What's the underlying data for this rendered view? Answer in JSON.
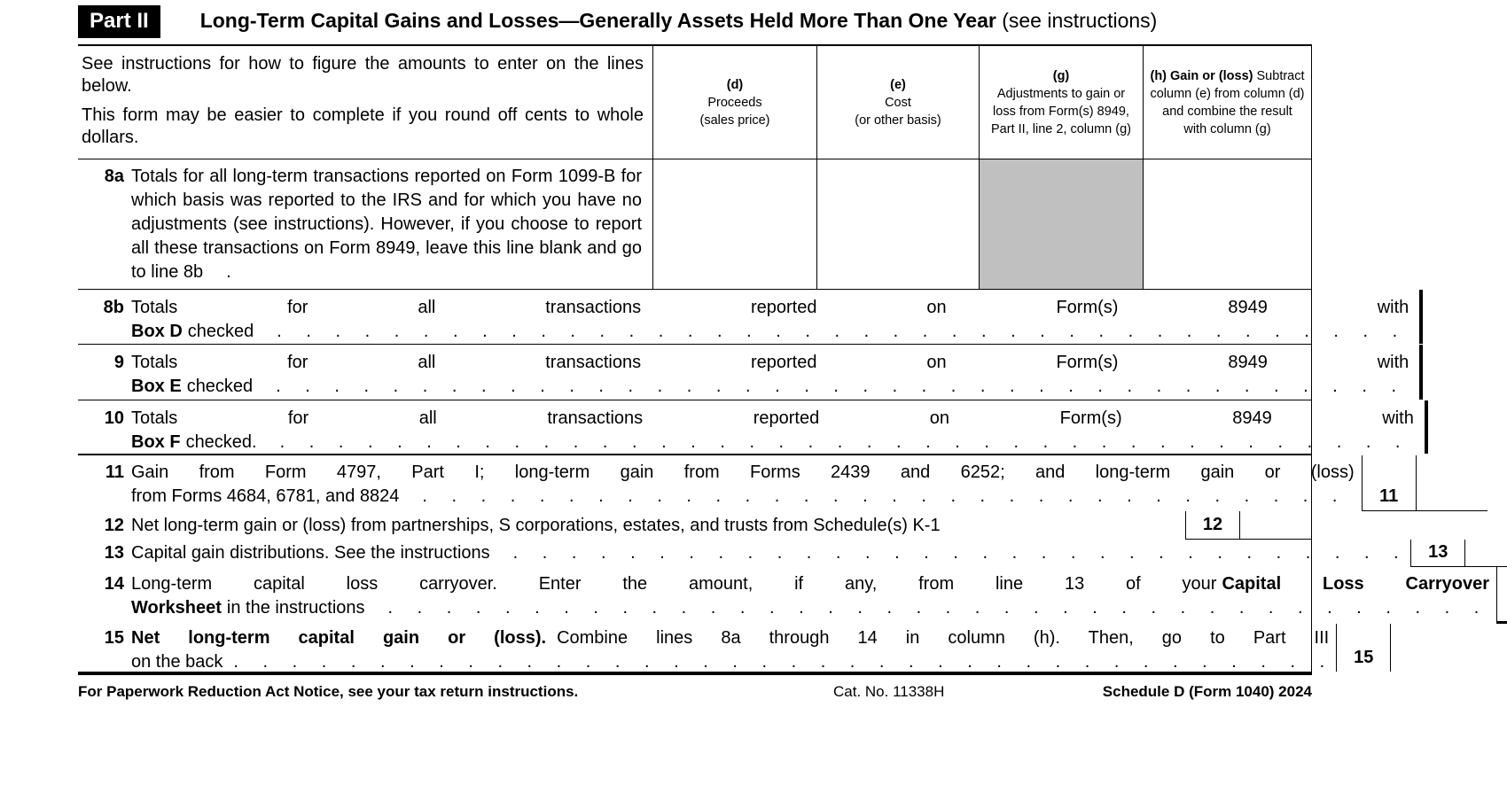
{
  "header": {
    "part_label": "Part II",
    "title": "Long-Term Capital Gains and Losses—Generally Assets Held More Than One Year",
    "subtitle": " (see instructions)"
  },
  "leader_dots": ". . . . . . . . . . . . . . . . . . . . . . . . . . . . . . . . . . . . . . . .",
  "intro": {
    "p1": "See instructions for how to figure the amounts to enter on the lines below.",
    "p2": "This form may be easier to complete if you round off cents to whole dollars."
  },
  "columns": {
    "d_label": "(d)",
    "d_line1": "Proceeds",
    "d_line2": "(sales price)",
    "e_label": "(e)",
    "e_line1": "Cost",
    "e_line2": "(or other basis)",
    "g_label": "(g)",
    "g_text": "Adjustments to gain or loss from Form(s) 8949, Part II, line 2, column (g)",
    "h_label": "(h) Gain or (loss)",
    "h_text": " Subtract column (e) from column (d) and combine the result with column (g)"
  },
  "rows": {
    "r8a": {
      "num": "8a",
      "text": "Totals for all long-term transactions reported on Form 1099-B for which basis was reported to the IRS and for which you have no adjustments (see instructions). However, if you choose to report all these transactions on Form 8949, leave this line blank and go to line 8b",
      "trail": "."
    },
    "r8b": {
      "num": "8b",
      "text": "Totals for all transactions reported on Form(s) 8949 with",
      "bold": "Box D",
      "after": "checked"
    },
    "r9": {
      "num": "9",
      "text": "Totals for all transactions reported on Form(s) 8949 with",
      "bold": "Box E",
      "after": "checked"
    },
    "r10": {
      "num": "10",
      "text": "Totals for all transactions reported on Form(s) 8949 with",
      "bold": "Box F",
      "after": "checked."
    }
  },
  "lines": {
    "l11": {
      "num": "11",
      "line1": "Gain from Form 4797, Part I; long-term gain from Forms 2439 and 6252; and long-term gain or (loss)",
      "line2": "from Forms 4684, 6781, and 8824"
    },
    "l12": {
      "num": "12",
      "text": "Net long-term gain or (loss) from partnerships, S corporations, estates, and trusts from Schedule(s) K-1"
    },
    "l13": {
      "num": "13",
      "text": "Capital gain distributions. See the instructions"
    },
    "l14": {
      "num": "14",
      "line1_pre": "Long-term capital loss carryover. Enter the amount, if any, from line 13 of your",
      "line1_bold": "Capital Loss Carryover",
      "line2_bold": "Worksheet",
      "line2_post": "in the instructions",
      "paren_open": "(",
      "paren_close": ")"
    },
    "l15": {
      "num": "15",
      "bold": "Net long-term capital gain or (loss).",
      "post": "Combine lines 8a through 14 in column (h). Then, go to Part III",
      "line2": "on the back"
    }
  },
  "footer": {
    "left": "For Paperwork Reduction Act Notice, see your tax return instructions.",
    "center": "Cat. No. 11338H",
    "right": "Schedule D (Form 1040) 2024"
  }
}
